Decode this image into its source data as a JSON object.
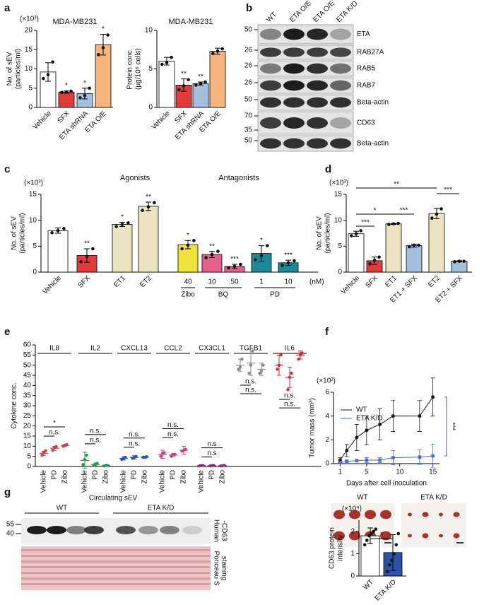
{
  "panel_labels": [
    "a",
    "b",
    "c",
    "d",
    "e",
    "f",
    "g"
  ],
  "chart_data": [
    {
      "type": "bar",
      "title": "MDA-MB231",
      "multiplier": "(×10³)",
      "ylabel": [
        "No. of sEV",
        "(particles/ml)"
      ],
      "categories": [
        "Vehicle",
        "SFX",
        "ETA shRNA",
        "ETA O/E"
      ],
      "colors": [
        "#ffffff",
        "#e23b3b",
        "#a4bfe0",
        "#f6b57c"
      ],
      "values": [
        9.2,
        4.0,
        3.6,
        16.3
      ],
      "errors": [
        2.4,
        0.3,
        1.4,
        2.7
      ],
      "points": [
        [
          7.5,
          8.5,
          11.8
        ],
        [
          3.9,
          4.0,
          4.2
        ],
        [
          2.5,
          3.1,
          5.0
        ],
        [
          13.7,
          15.5,
          18.8
        ]
      ],
      "annotations": [
        null,
        "*",
        "*",
        "*"
      ],
      "ylim": [
        0,
        20
      ],
      "yticks": [
        0,
        5,
        10,
        15,
        20
      ]
    },
    {
      "type": "bar",
      "title": "MDA-MB231",
      "ylabel": [
        "Protein conc.",
        "(µg/10⁶ cells)"
      ],
      "categories": [
        "Vehicle",
        "SFX",
        "ETA shRNA",
        "ETA O/E"
      ],
      "colors": [
        "#ffffff",
        "#e23b3b",
        "#a4bfe0",
        "#f6b57c"
      ],
      "values": [
        6.0,
        2.9,
        3.1,
        7.3
      ],
      "errors": [
        0.5,
        0.8,
        0.2,
        0.4
      ],
      "points": [
        [
          5.6,
          5.8,
          6.5
        ],
        [
          2.3,
          2.8,
          3.6
        ],
        [
          2.9,
          3.1,
          3.3
        ],
        [
          7.0,
          7.3,
          7.6
        ]
      ],
      "annotations": [
        null,
        "**",
        "**",
        null
      ],
      "ylim": [
        0,
        10
      ],
      "yticks": [
        0,
        5,
        10
      ]
    },
    {
      "type": "blot",
      "lanes": [
        "WT",
        "ETA O/E",
        "ETA O/E",
        "ETA K/D"
      ],
      "rows": [
        {
          "markers": [
            "50"
          ],
          "label": "ETA"
        },
        {
          "markers": [
            "26"
          ],
          "label": "RAB27A"
        },
        {
          "markers": [
            "26"
          ],
          "label": "RAB5"
        },
        {
          "markers": [
            "26"
          ],
          "label": "RAB7"
        },
        {
          "markers": [
            "50"
          ],
          "label": "Beta-actin"
        },
        {
          "markers": [
            "70",
            "35"
          ],
          "label": "CD63"
        },
        {
          "markers": [
            "50"
          ],
          "label": "Beta-actin"
        }
      ]
    },
    {
      "type": "bar",
      "multiplier": "(×10³)",
      "ylabel": [
        "No. of sEV",
        "(particles/ml)"
      ],
      "headers": [
        "Agonists",
        "Antagonists"
      ],
      "unit": "(nM)",
      "categories": [
        "Vehicle",
        "SFX",
        "ET1",
        "ET2",
        "40",
        "10",
        "50",
        "1",
        "10"
      ],
      "category_groups": [
        null,
        null,
        null,
        null,
        "Zibo",
        "BQ",
        "BQ",
        "PD",
        "PD"
      ],
      "colors": [
        "#ffffff",
        "#e23b3b",
        "#ece3c2",
        "#ece3c2",
        "#f0e43c",
        "#e8608a",
        "#e8608a",
        "#1a8a9a",
        "#1a8a9a"
      ],
      "values": [
        8.0,
        3.2,
        9.2,
        12.7,
        5.3,
        3.4,
        1.1,
        3.6,
        1.8
      ],
      "errors": [
        0.5,
        1.3,
        0.4,
        0.8,
        0.8,
        0.6,
        0.4,
        1.5,
        0.5
      ],
      "points": [
        [
          7.6,
          8.0,
          8.4
        ],
        [
          2.0,
          3.0,
          4.5
        ],
        [
          8.8,
          9.2,
          9.5
        ],
        [
          11.9,
          12.6,
          13.4
        ],
        [
          4.5,
          5.2,
          6.1
        ],
        [
          2.8,
          3.4,
          4.0
        ],
        [
          0.8,
          1.1,
          1.5
        ],
        [
          2.4,
          3.2,
          5.1
        ],
        [
          1.3,
          1.8,
          2.2
        ]
      ],
      "annotations": [
        null,
        "**",
        "*",
        "**",
        "*",
        "**",
        "***",
        "*",
        "***"
      ],
      "ylim": [
        0,
        15
      ],
      "yticks": [
        0,
        5,
        10,
        15
      ]
    },
    {
      "type": "bar",
      "multiplier": "(×10³)",
      "ylabel": [
        "No. of sEV",
        "(particles/ml)"
      ],
      "categories": [
        "Vehicle",
        "SFX",
        "ET1",
        "ET1 + SFX",
        "ET2",
        "ET2 + SFX"
      ],
      "colors": [
        "#ffffff",
        "#e23b3b",
        "#ece3c2",
        "#a4bfe0",
        "#ece3c2",
        "#a4bfe0"
      ],
      "values": [
        7.4,
        2.2,
        9.3,
        5.1,
        11.3,
        2.1
      ],
      "errors": [
        0.5,
        0.7,
        0.1,
        0.3,
        1.0,
        0.1
      ],
      "points": [
        [
          7.0,
          7.4,
          8.0
        ],
        [
          1.6,
          2.3,
          2.9
        ],
        [
          9.2,
          9.3,
          9.4
        ],
        [
          4.9,
          5.2,
          5.2
        ],
        [
          10.4,
          11.2,
          12.2
        ],
        [
          2.0,
          2.1,
          2.1
        ]
      ],
      "brackets": [
        {
          "pair": [
            "Vehicle",
            "SFX"
          ],
          "label": "***"
        },
        {
          "pair": [
            "Vehicle",
            "ET1"
          ],
          "label": "*"
        },
        {
          "pair": [
            "Vehicle",
            "ET2"
          ],
          "label": "**"
        },
        {
          "pair": [
            "ET1",
            "ET1 + SFX"
          ],
          "label": "***"
        },
        {
          "pair": [
            "ET2",
            "ET2 + SFX"
          ],
          "label": "***"
        }
      ],
      "ylim": [
        0,
        15
      ],
      "yticks": [
        0,
        5,
        10,
        15
      ]
    },
    {
      "type": "dot",
      "ylabel": "Cytokine conc.",
      "groups": [
        {
          "name": "IL8",
          "color": "#d43c3c",
          "labels": [
            "Vehicle",
            "PD",
            "Zibo"
          ],
          "annotations": [
            "n.s.",
            "*"
          ],
          "conditions": [
            {
              "points": [
                5.5,
                7.0,
                7.8
              ],
              "mean": 6.5,
              "sd": 1.0
            },
            {
              "points": [
                8.0,
                9.5,
                9.8
              ],
              "mean": 9.0,
              "sd": 1.0
            },
            {
              "points": [
                10.0,
                10.5,
                10.8
              ],
              "mean": 10.4,
              "sd": 0.4
            }
          ]
        },
        {
          "name": "IL2",
          "color": "#2a9a4a",
          "labels": [
            "Vehicle",
            "PD",
            "Zibo"
          ],
          "annotations": [
            "n.s.",
            "n.s."
          ],
          "conditions": [
            {
              "points": [
                1.0,
                3.5,
                5.5
              ],
              "mean": 3.0,
              "sd": 4.0
            },
            {
              "points": [
                0.5,
                1.0,
                1.5
              ],
              "mean": 1.0,
              "sd": 0.8
            },
            {
              "points": [
                0.3,
                0.5,
                0.5
              ],
              "mean": 0.5,
              "sd": 0.2
            }
          ]
        },
        {
          "name": "CXCL13",
          "color": "#2a5aaa",
          "labels": [
            "Vehicle",
            "PD",
            "Zibo"
          ],
          "annotations": [
            "n.s.",
            "n.s."
          ],
          "conditions": [
            {
              "points": [
                3.5,
                4.0,
                4.5
              ],
              "mean": 4.0,
              "sd": 0.8
            },
            {
              "points": [
                4.0,
                4.5,
                5.0
              ],
              "mean": 4.5,
              "sd": 0.8
            },
            {
              "points": [
                4.5,
                4.5,
                4.8
              ],
              "mean": 4.6,
              "sd": 0.5
            }
          ]
        },
        {
          "name": "CCL2",
          "color": "#d04080",
          "labels": [
            "Vehicle",
            "PD",
            "Zibo"
          ],
          "annotations": [
            "n.s.",
            "n.s."
          ],
          "conditions": [
            {
              "points": [
                5.0,
                6.5,
                6.8
              ],
              "mean": 6.0,
              "sd": 2.0
            },
            {
              "points": [
                5.0,
                6.0,
                6.0
              ],
              "mean": 5.7,
              "sd": 0.6
            },
            {
              "points": [
                7.5,
                8.0,
                8.5
              ],
              "mean": 8.0,
              "sd": 2.0
            }
          ]
        },
        {
          "name": "CX3CL1",
          "color": "#8a2a8a",
          "labels": [
            "Vehicle",
            "PD",
            "Zibo"
          ],
          "annotations": [
            "n.s",
            "n.s"
          ],
          "conditions": [
            {
              "points": [
                0.3,
                0.4,
                0.5
              ],
              "mean": 0.4,
              "sd": 0.1
            },
            {
              "points": [
                0.3,
                0.4,
                0.5
              ],
              "mean": 0.4,
              "sd": 0.1
            },
            {
              "points": [
                0.3,
                0.4,
                0.5
              ],
              "mean": 0.4,
              "sd": 0.1
            }
          ]
        },
        {
          "name": "TGFB1",
          "color": "#8c8c8c",
          "annotations": [
            "n.s.",
            "n.s."
          ],
          "conditions": [
            {
              "points": [
                48,
                49,
                53
              ],
              "mean": 50,
              "sd": 3
            },
            {
              "points": [
                46,
                50,
                57
              ],
              "mean": 51,
              "sd": 6
            },
            {
              "points": [
                46,
                47,
                50
              ],
              "mean": 48,
              "sd": 3
            }
          ]
        },
        {
          "name": "IL6",
          "color": "#d43030",
          "annotations": [
            "n.s.",
            "n.s."
          ],
          "conditions": [
            {
              "points": [
                48,
                50,
                55
              ],
              "mean": 50,
              "sd": 5
            },
            {
              "points": [
                38,
                44,
                46
              ],
              "mean": 44,
              "sd": 5
            },
            {
              "points": [
                53,
                55,
                56
              ],
              "mean": 55,
              "sd": 2
            }
          ]
        }
      ],
      "ylim": [
        0,
        60
      ],
      "yticks": [
        0,
        5,
        10,
        15,
        20,
        25,
        30,
        35,
        40,
        45,
        50,
        55,
        60
      ]
    },
    {
      "type": "line",
      "multiplier": "(×10²)",
      "ylabel": "Tumor mass (mm³)",
      "xlabel": "Days after cell inoculation",
      "x": [
        1,
        2,
        3.5,
        5,
        7,
        9,
        13,
        15
      ],
      "series": [
        {
          "name": "WT",
          "color": "#1a1a1a",
          "values": [
            0.3,
            1.1,
            2.2,
            2.8,
            3.3,
            4.0,
            4.0,
            5.6
          ],
          "errors": [
            0.2,
            0.5,
            1.1,
            1.2,
            1.3,
            1.3,
            1.3,
            1.6
          ]
        },
        {
          "name": "ETA K/D",
          "color": "#3d6fd0",
          "values": [
            0.1,
            0.2,
            0.25,
            0.3,
            0.3,
            0.5,
            0.55,
            0.65
          ],
          "errors": [
            0.05,
            0.1,
            0.1,
            0.2,
            0.2,
            0.6,
            0.6,
            1.0
          ]
        }
      ],
      "annotation": "***",
      "photo_labels": [
        "WT",
        "ETA K/D"
      ],
      "xlim": [
        0,
        16
      ],
      "xticks": [
        1,
        5,
        10,
        15
      ],
      "ylim": [
        0,
        6
      ],
      "yticks": [
        0,
        2,
        4,
        6
      ]
    },
    {
      "type": "gel",
      "title": "Circulating sEV",
      "lanes": [
        "WT",
        "ETA K/D"
      ],
      "markers": [
        "55",
        "40"
      ],
      "labels": [
        [
          "Human",
          "-CD63"
        ],
        [
          "Ponceau S",
          "staining"
        ]
      ]
    },
    {
      "type": "bar",
      "multiplier": "(×10⁴)",
      "ylabel": [
        "CD63 protein",
        "intensity"
      ],
      "categories": [
        "WT",
        "ETA K/D"
      ],
      "colors": [
        "#ffffff",
        "#2c4fa8"
      ],
      "values": [
        1.8,
        1.05
      ],
      "errors": [
        0.35,
        0.8
      ],
      "points": [
        [
          1.4,
          1.6,
          1.8,
          1.9,
          2.0,
          2.1
        ],
        [
          0.2,
          0.5,
          0.7,
          1.0,
          1.4,
          1.9
        ]
      ],
      "brackets": [
        {
          "pair": [
            "WT",
            "ETA K/D"
          ],
          "label": "*"
        }
      ],
      "ylim": [
        0,
        2.5
      ],
      "yticks": [
        0,
        1,
        2
      ]
    }
  ]
}
